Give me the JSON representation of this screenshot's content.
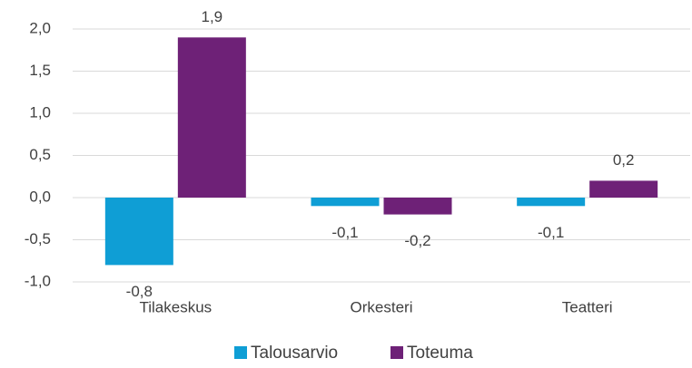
{
  "chart_data": {
    "type": "bar",
    "categories": [
      "Tilakeskus",
      "Orkesteri",
      "Teatteri"
    ],
    "series": [
      {
        "name": "Talousarvio",
        "color": "#0f9ed5",
        "values": [
          -0.8,
          -0.1,
          -0.1
        ],
        "value_labels": [
          "-0,8",
          "-0,1",
          "-0,1"
        ]
      },
      {
        "name": "Toteuma",
        "color": "#6e2177",
        "values": [
          1.9,
          -0.2,
          0.2
        ],
        "value_labels": [
          "1,9",
          "-0,2",
          "0,2"
        ]
      }
    ],
    "ylim": [
      -1.0,
      2.0
    ],
    "yticks": [
      {
        "value": -1.0,
        "label": "-1,0"
      },
      {
        "value": -0.5,
        "label": "-0,5"
      },
      {
        "value": 0,
        "label": "0,0"
      },
      {
        "value": 0.5,
        "label": "0,5"
      },
      {
        "value": 1.0,
        "label": "1,0"
      },
      {
        "value": 1.5,
        "label": "1,5"
      },
      {
        "value": 2.0,
        "label": "2,0"
      }
    ],
    "grid": true,
    "legend": "bottom"
  }
}
